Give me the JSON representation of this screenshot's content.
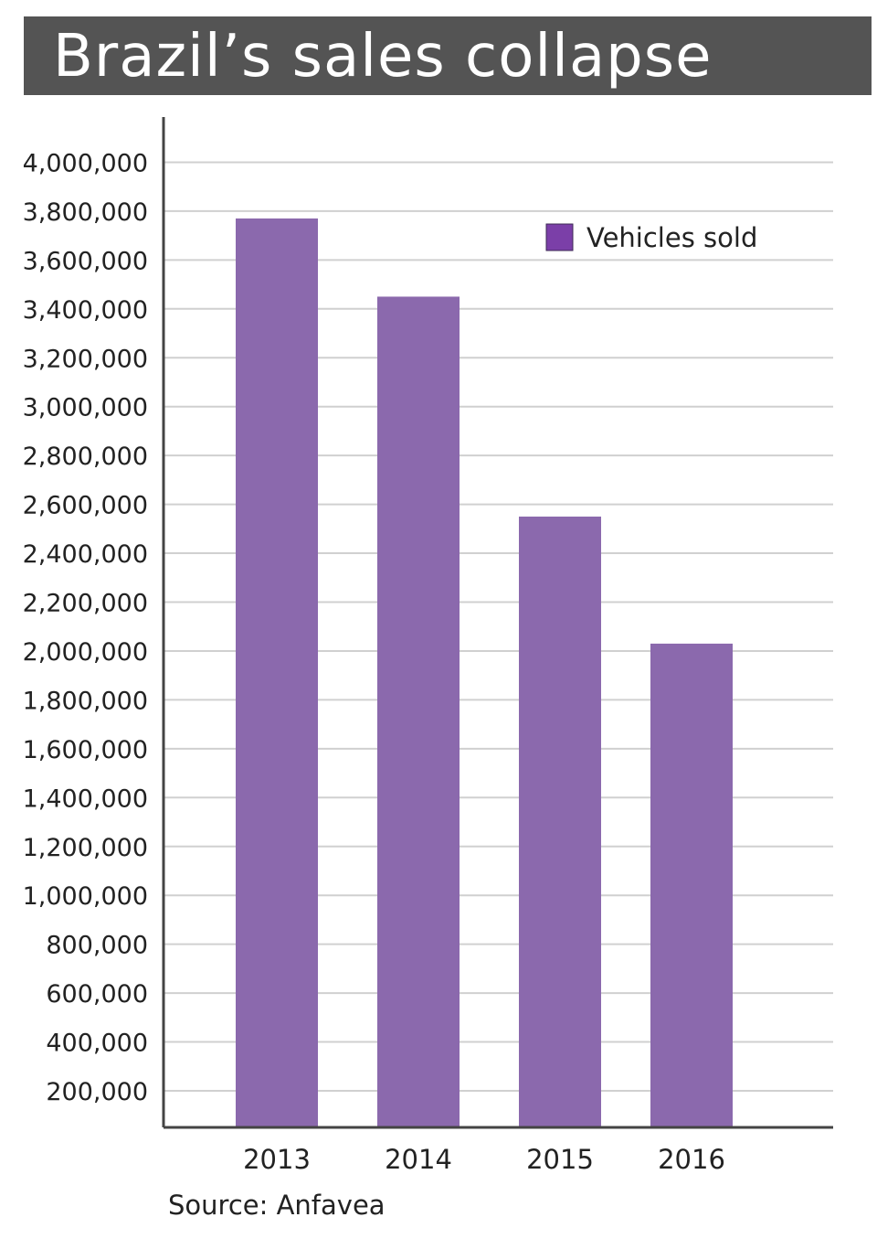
{
  "title": "Brazil’s sales collapse",
  "source": "Source: Anfavea",
  "colors": {
    "bar": "#8b69ad",
    "legend_swatch": "#7b3fa8",
    "title_bg": "#545454",
    "grid": "#d0d0d0",
    "axis": "#444444"
  },
  "chart_data": {
    "type": "bar",
    "title": "Brazil’s sales collapse",
    "categories": [
      "2013",
      "2014",
      "2015",
      "2016"
    ],
    "series": [
      {
        "name": "Vehicles sold",
        "values": [
          3770000,
          3450000,
          2550000,
          2030000
        ]
      }
    ],
    "ylim": [
      50000,
      4000000
    ],
    "yticks": [
      200000,
      400000,
      600000,
      800000,
      1000000,
      1200000,
      1400000,
      1600000,
      1800000,
      2000000,
      2200000,
      2400000,
      2600000,
      2800000,
      3000000,
      3200000,
      3400000,
      3600000,
      3800000,
      4000000
    ],
    "ytick_labels": [
      "200,000",
      "400,000",
      "600,000",
      "800,000",
      "1,000,000",
      "1,200,000",
      "1,400,000",
      "1,600,000",
      "1,800,000",
      "2,000,000",
      "2,200,000",
      "2,400,000",
      "2,600,000",
      "2,800,000",
      "3,000,000",
      "3,200,000",
      "3,400,000",
      "3,600,000",
      "3,800,000",
      "4,000,000"
    ],
    "xlabel": "",
    "ylabel": "",
    "grid": true,
    "legend_position": "top-right"
  }
}
